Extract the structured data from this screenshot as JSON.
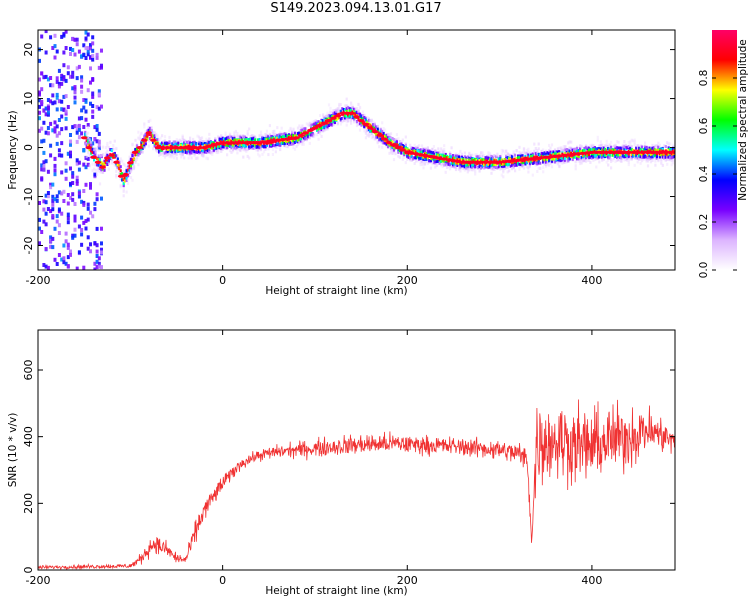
{
  "title": "S149.2023.094.13.01.G17",
  "colors": {
    "snr_line": "#f03232",
    "colorbar": [
      "#ffffff",
      "#dcb4ff",
      "#7800ff",
      "#0000ff",
      "#00ffff",
      "#00ff00",
      "#ffff00",
      "#ff0000",
      "#ff0066"
    ]
  },
  "chart_data": [
    {
      "type": "heatmap",
      "xlabel": "Height of straight line (km)",
      "ylabel": "Frequency (Hz)",
      "xlim": [
        -200,
        490
      ],
      "ylim": [
        -25,
        24
      ],
      "x_ticks": [
        "-200",
        "0",
        "200",
        "400"
      ],
      "x_tick_values": [
        -200,
        0,
        200,
        400
      ],
      "y_ticks": [
        "20",
        "10",
        "0",
        "-10",
        "-20"
      ],
      "y_tick_values": [
        20,
        10,
        0,
        -10,
        -20
      ],
      "colorbar_label": "Normalized spectral amplitude",
      "colorbar_ticks": [
        "0.0",
        "0.2",
        "0.4",
        "0.6",
        "0.8"
      ],
      "colorbar_tick_values": [
        0.0,
        0.2,
        0.4,
        0.6,
        0.8
      ],
      "colorbar_range": [
        0,
        1
      ],
      "ridge": {
        "x": [
          -150,
          -140,
          -130,
          -122,
          -115,
          -108,
          -102,
          -95,
          -90,
          -80,
          -70,
          -50,
          -20,
          0,
          40,
          80,
          110,
          130,
          140,
          160,
          180,
          200,
          230,
          260,
          300,
          350,
          400,
          450,
          490
        ],
        "y": [
          2,
          -2,
          -4,
          -1,
          -3,
          -7,
          -4,
          -1,
          0,
          3,
          0,
          0,
          0,
          1,
          1,
          2,
          5,
          7,
          7,
          4,
          1,
          -1,
          -2,
          -3,
          -3,
          -2,
          -1,
          -1,
          -1
        ]
      },
      "noise_region_x": [
        -200,
        -140
      ]
    },
    {
      "type": "line",
      "xlabel": "Height of straight line (km)",
      "ylabel": "SNR (10 * v/v)",
      "xlim": [
        -200,
        490
      ],
      "ylim": [
        0,
        720
      ],
      "x_ticks": [
        "-200",
        "0",
        "200",
        "400"
      ],
      "x_tick_values": [
        -200,
        0,
        200,
        400
      ],
      "y_ticks": [
        "0",
        "200",
        "400",
        "600"
      ],
      "y_tick_values": [
        0,
        200,
        400,
        600
      ],
      "envelope": {
        "x": [
          -200,
          -100,
          -90,
          -75,
          -60,
          -50,
          -40,
          -30,
          -20,
          -10,
          0,
          20,
          40,
          60,
          80,
          100,
          140,
          180,
          220,
          260,
          300,
          320,
          330,
          335,
          340,
          360,
          380,
          400,
          420,
          440,
          460,
          480,
          490
        ],
        "mean": [
          8,
          12,
          30,
          80,
          60,
          35,
          30,
          110,
          180,
          220,
          260,
          320,
          345,
          355,
          360,
          365,
          375,
          380,
          375,
          370,
          360,
          350,
          330,
          90,
          380,
          390,
          380,
          370,
          390,
          400,
          420,
          400,
          380
        ],
        "spread": [
          8,
          10,
          25,
          40,
          35,
          25,
          20,
          50,
          45,
          40,
          35,
          25,
          25,
          30,
          35,
          40,
          45,
          45,
          40,
          40,
          45,
          50,
          60,
          60,
          170,
          180,
          170,
          160,
          150,
          140,
          100,
          70,
          60
        ]
      }
    }
  ]
}
